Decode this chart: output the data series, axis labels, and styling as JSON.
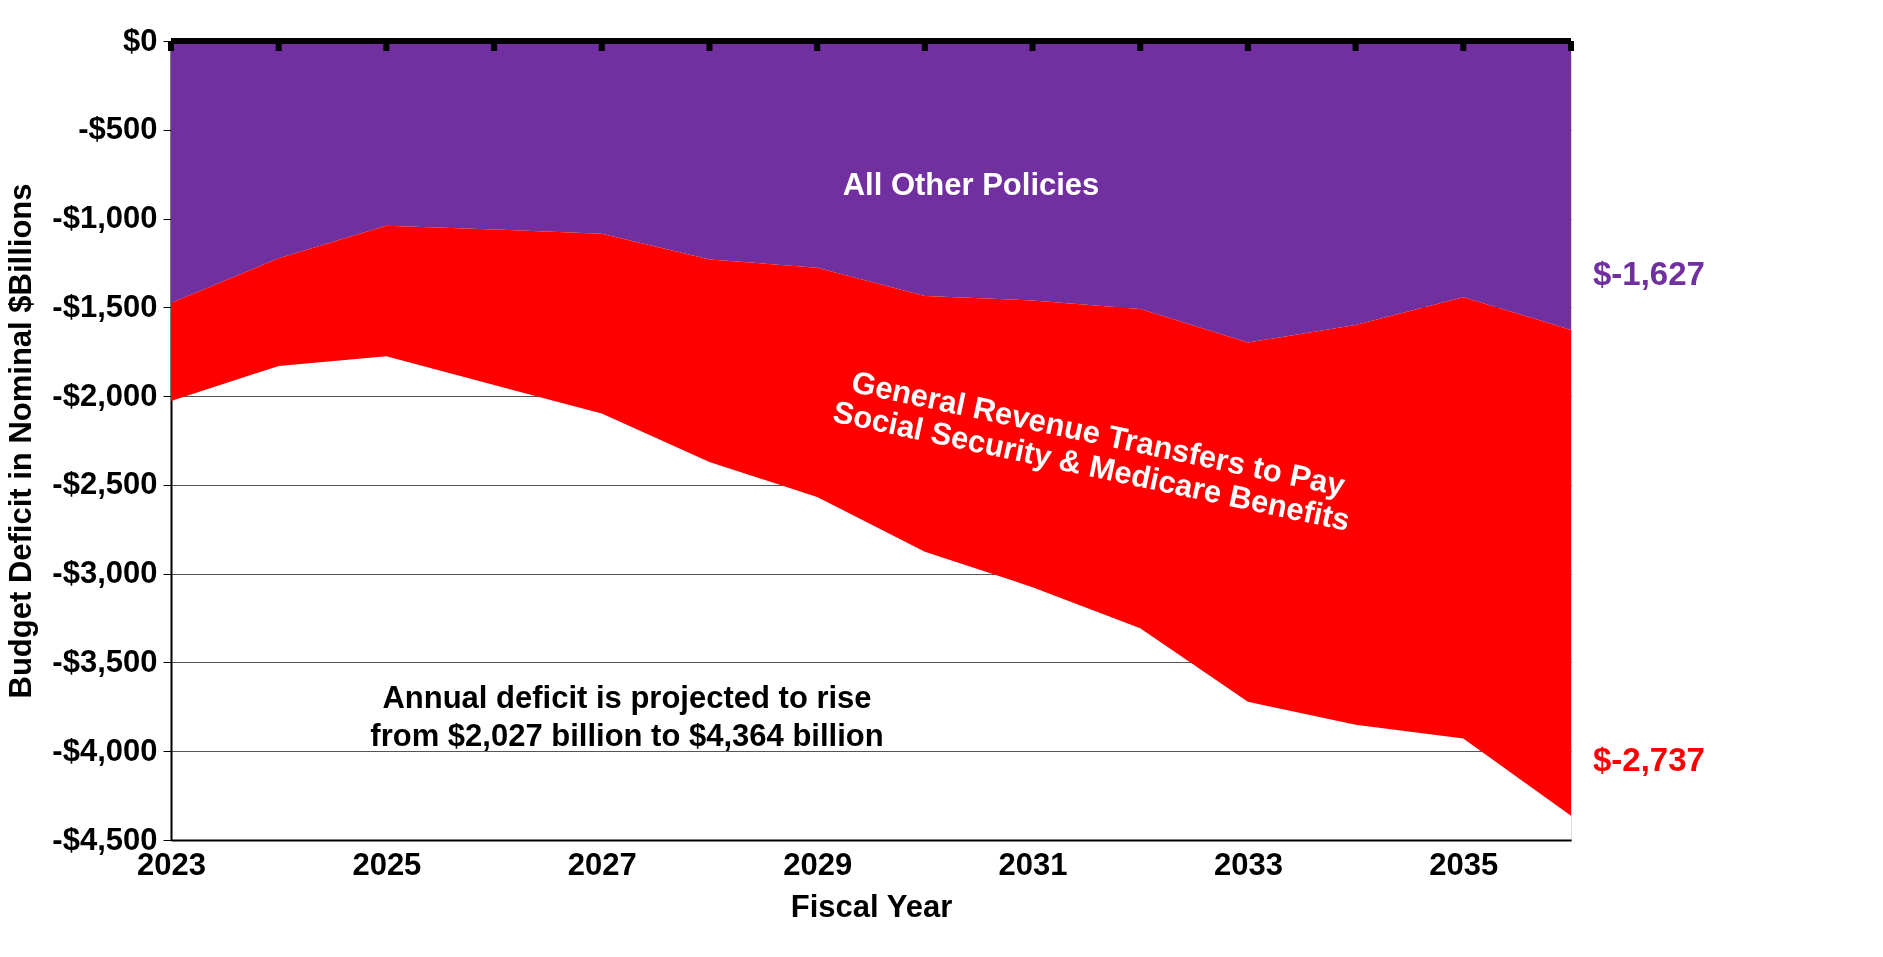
{
  "chart_data": {
    "type": "area",
    "stacked": true,
    "xlabel": "Fiscal Year",
    "ylabel": "Budget Deficit in Nominal $Billions",
    "x": [
      2023,
      2024,
      2025,
      2026,
      2027,
      2028,
      2029,
      2030,
      2031,
      2032,
      2033,
      2034,
      2035,
      2036
    ],
    "series": [
      {
        "name": "All Other Policies",
        "color": "#7030a0",
        "values": [
          -1476,
          -1224,
          -1040,
          -1061,
          -1086,
          -1230,
          -1277,
          -1436,
          -1461,
          -1510,
          -1698,
          -1600,
          -1443,
          -1627
        ],
        "value_labels": [
          null,
          null,
          null,
          null,
          null,
          null,
          null,
          null,
          null,
          null,
          null,
          null,
          null,
          "$-1,627"
        ]
      },
      {
        "name": "General Revenue Transfers to Pay\nSocial Security & Medicare Benefits",
        "color": "#ff0000",
        "values": [
          -551,
          -606,
          -735,
          -877,
          -1012,
          -1141,
          -1291,
          -1440,
          -1615,
          -1797,
          -2024,
          -2251,
          -2485,
          -2737
        ],
        "value_labels": [
          null,
          null,
          null,
          null,
          null,
          null,
          null,
          null,
          null,
          null,
          null,
          null,
          null,
          "$-2,737"
        ]
      }
    ],
    "xlim": [
      2023,
      2036
    ],
    "xticks": [
      2023,
      {
        "value": 2024,
        "label": null
      },
      2025,
      {
        "value": 2026,
        "label": null
      },
      2027,
      {
        "value": 2028,
        "label": null
      },
      2029,
      {
        "value": 2030,
        "label": null
      },
      2031,
      {
        "value": 2032,
        "label": null
      },
      2033,
      {
        "value": 2034,
        "label": null
      },
      2035,
      {
        "value": 2036,
        "label": null
      }
    ],
    "ylim": [
      -4500,
      0
    ],
    "yticks": [
      {
        "value": 0,
        "label": "$0"
      },
      {
        "value": -500,
        "label": "-$500"
      },
      {
        "value": -1000,
        "label": "-$1,000"
      },
      {
        "value": -1500,
        "label": "-$1,500"
      },
      {
        "value": -2000,
        "label": "-$2,000"
      },
      {
        "value": -2500,
        "label": "-$2,500"
      },
      {
        "value": -3000,
        "label": "-$3,000"
      },
      {
        "value": -3500,
        "label": "-$3,500"
      },
      {
        "value": -4000,
        "label": "-$4,000"
      },
      {
        "value": -4500,
        "label": "-$4,500"
      }
    ],
    "grid": "y",
    "legend": false,
    "annotations": [
      "Annual deficit is projected to rise\nfrom $2,027 billion to $4,364 billion"
    ]
  }
}
